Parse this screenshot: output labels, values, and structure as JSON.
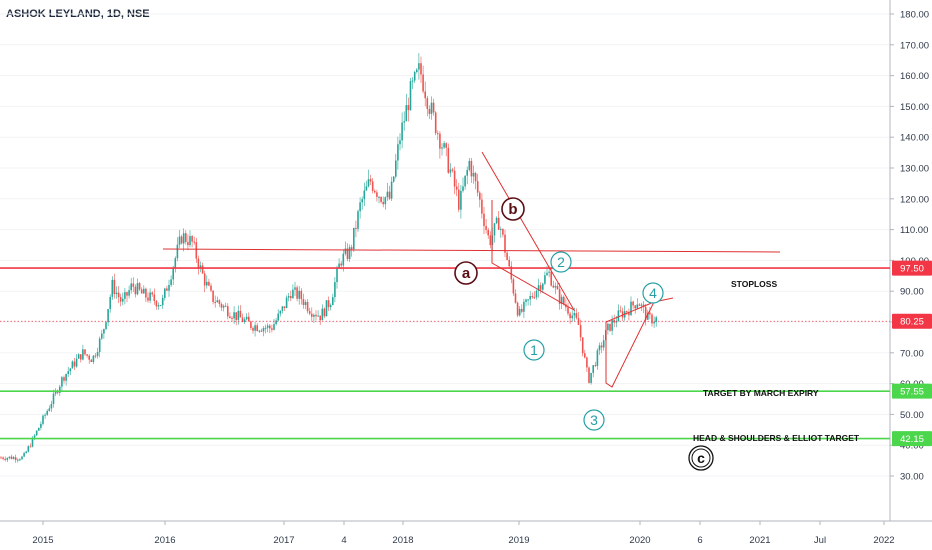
{
  "chart_data": {
    "type": "candlestick",
    "title": "ASHOK LEYLAND, 1D, NSE",
    "ylim": [
      21.5,
      183.5
    ],
    "yticks": [
      "180.00",
      "170.00",
      "160.00",
      "150.00",
      "140.00",
      "130.00",
      "120.00",
      "110.00",
      "100.00",
      "90.00",
      "80.00",
      "70.00",
      "60.00",
      "50.00",
      "40.00",
      "30.00"
    ],
    "ytick_values": [
      180,
      170,
      160,
      150,
      140,
      130,
      120,
      110,
      100,
      90,
      80,
      70,
      60,
      50,
      40,
      30
    ],
    "xticks": [
      "2015",
      "2016",
      "2017",
      "4",
      "2018",
      "2019",
      "2020",
      "6",
      "2021",
      "Jul",
      "2022"
    ],
    "price_path": [
      [
        "2014-11",
        36
      ],
      [
        "2014-12",
        42
      ],
      [
        "2015-02",
        55
      ],
      [
        "2015-03",
        62
      ],
      [
        "2015-05",
        70
      ],
      [
        "2015-06",
        68
      ],
      [
        "2015-07",
        76
      ],
      [
        "2015-08",
        92
      ],
      [
        "2015-09",
        86
      ],
      [
        "2015-10",
        92
      ],
      [
        "2015-11",
        89
      ],
      [
        "2016-01",
        86
      ],
      [
        "2016-02",
        97
      ],
      [
        "2016-03",
        108
      ],
      [
        "2016-04",
        106
      ],
      [
        "2016-05",
        96
      ],
      [
        "2016-06",
        88
      ],
      [
        "2016-08",
        83
      ],
      [
        "2016-10",
        79
      ],
      [
        "2016-12",
        78
      ],
      [
        "2017-01",
        83
      ],
      [
        "2017-02",
        90
      ],
      [
        "2017-03",
        88
      ],
      [
        "2017-04",
        84
      ],
      [
        "2017-05",
        82
      ],
      [
        "2017-06",
        87
      ],
      [
        "2017-07",
        100
      ],
      [
        "2017-08",
        103
      ],
      [
        "2017-09",
        118
      ],
      [
        "2017-10",
        126
      ],
      [
        "2017-11",
        121
      ],
      [
        "2017-12",
        120
      ],
      [
        "2018-01",
        140
      ],
      [
        "2018-02",
        154
      ],
      [
        "2018-03",
        162
      ],
      [
        "2018-04",
        150
      ],
      [
        "2018-05",
        140
      ],
      [
        "2018-06",
        130
      ],
      [
        "2018-07",
        118
      ],
      [
        "2018-08",
        132
      ],
      [
        "2018-09",
        120
      ],
      [
        "2018-10",
        106
      ],
      [
        "2018-11",
        113
      ],
      [
        "2018-12",
        97
      ],
      [
        "2019-01",
        82
      ],
      [
        "2019-02",
        87
      ],
      [
        "2019-03",
        92
      ],
      [
        "2019-04",
        96
      ],
      [
        "2019-05",
        88
      ],
      [
        "2019-06",
        84
      ],
      [
        "2019-07",
        79
      ],
      [
        "2019-08",
        61
      ],
      [
        "2019-09",
        70
      ],
      [
        "2019-10",
        78
      ],
      [
        "2019-11",
        82
      ],
      [
        "2019-12",
        84
      ],
      [
        "2020-01",
        87
      ],
      [
        "2020-02",
        81
      ]
    ],
    "horizontal_levels": [
      {
        "label": "97.50",
        "value": 97.5,
        "color": "#f23645"
      },
      {
        "label": "80.25",
        "value": 80.25,
        "color": "#f23645",
        "style": "dotted"
      },
      {
        "label": "57.55",
        "value": 57.55,
        "color": "#4cd64c"
      },
      {
        "label": "42.15",
        "value": 42.15,
        "color": "#4cd64c"
      }
    ],
    "annotations": [
      "STOPLOSS",
      "TARGET BY MARCH EXPIRY",
      "HEAD & SHOULDERS & ELLIOT TARGET"
    ],
    "wave_labels": [
      "a",
      "b",
      "c",
      "1",
      "2",
      "3",
      "4"
    ],
    "colors": {
      "up": "#26a69a",
      "down": "#ef5350",
      "drawing": "#e03131",
      "wave": "#26a0a6",
      "target": "#4cd64c",
      "stop": "#f23645"
    }
  }
}
